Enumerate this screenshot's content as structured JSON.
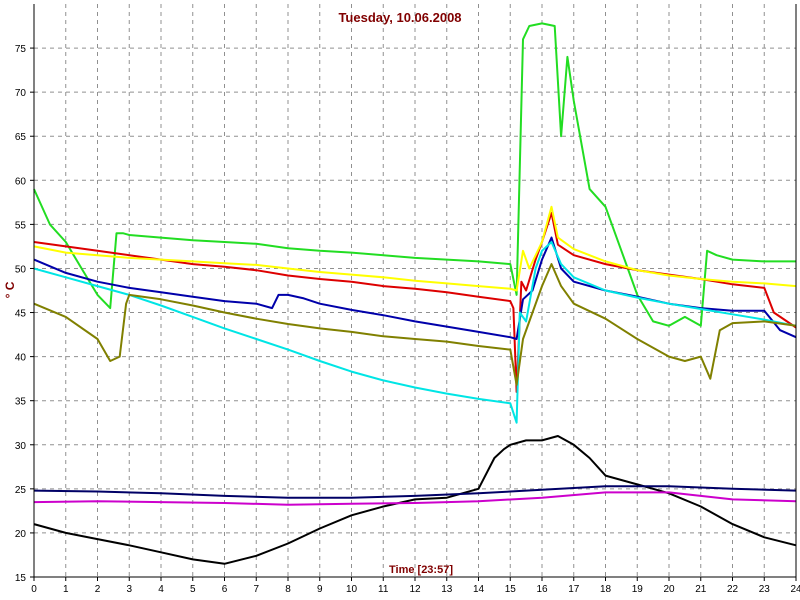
{
  "chart_data": {
    "type": "line",
    "title": "Tuesday, 10.06.2008",
    "xlabel": "Time [23:57]",
    "ylabel": "° C",
    "xlim": [
      0,
      24
    ],
    "ylim": [
      15,
      80
    ],
    "x_ticks": [
      "0",
      "1",
      "2",
      "3",
      "4",
      "5",
      "6",
      "7",
      "8",
      "9",
      "10",
      "11",
      "12",
      "13",
      "14",
      "15",
      "16",
      "17",
      "18",
      "19",
      "20",
      "21",
      "22",
      "23",
      "24"
    ],
    "y_ticks": [
      "15",
      "20",
      "25",
      "30",
      "35",
      "40",
      "45",
      "50",
      "55",
      "60",
      "65",
      "70",
      "75"
    ],
    "grid": true,
    "series": [
      {
        "color": "#22dd22",
        "x": [
          0,
          0.5,
          1,
          1.5,
          2,
          2.4,
          2.6,
          2.8,
          3,
          4,
          5,
          6,
          7,
          8,
          9,
          10,
          11,
          12,
          13,
          14,
          15,
          15.2,
          15.4,
          15.6,
          16,
          16.4,
          16.6,
          16.8,
          17,
          17.5,
          18,
          18.5,
          19,
          19.5,
          20,
          20.5,
          21,
          21.2,
          21.5,
          22,
          23,
          24
        ],
        "y": [
          59,
          55,
          53,
          50,
          47,
          45.5,
          54,
          54,
          53.8,
          53.5,
          53.2,
          53,
          52.8,
          52.3,
          52,
          51.8,
          51.5,
          51.2,
          51,
          50.8,
          50.5,
          47,
          76,
          77.5,
          77.8,
          77.5,
          65,
          74,
          69,
          59,
          57,
          52,
          47,
          44,
          43.5,
          44.5,
          43.5,
          52,
          51.5,
          51,
          50.8,
          50.8
        ]
      },
      {
        "color": "#dd0000",
        "x": [
          0,
          1,
          2,
          3,
          4,
          5,
          6,
          7,
          8,
          9,
          10,
          11,
          12,
          13,
          14,
          15,
          15.1,
          15.2,
          15.35,
          15.5,
          15.8,
          16,
          16.3,
          16.5,
          17,
          18,
          19,
          20,
          21,
          22,
          23,
          23.3,
          24
        ],
        "y": [
          53,
          52.5,
          52,
          51.5,
          51,
          50.5,
          50.2,
          49.8,
          49.2,
          48.8,
          48.5,
          48,
          47.7,
          47.3,
          46.8,
          46.3,
          45.5,
          36,
          48.5,
          47.5,
          51,
          53,
          56.3,
          52.7,
          51.5,
          50.5,
          49.8,
          49.3,
          48.8,
          48.2,
          47.8,
          45,
          43.3
        ]
      },
      {
        "color": "#ffff00",
        "x": [
          0,
          1,
          2,
          3,
          4,
          5,
          6,
          7,
          8,
          9,
          10,
          11,
          12,
          13,
          14,
          15,
          15.2,
          15.4,
          15.6,
          16,
          16.3,
          16.5,
          17,
          18,
          19,
          20,
          21,
          22,
          23,
          24
        ],
        "y": [
          52.5,
          51.8,
          51.5,
          51.2,
          51,
          50.8,
          50.6,
          50.4,
          50,
          49.6,
          49.3,
          49,
          48.6,
          48.3,
          48,
          47.7,
          47.5,
          52,
          50,
          53,
          57,
          53.5,
          52.2,
          50.8,
          49.8,
          49.2,
          48.8,
          48.5,
          48.3,
          48
        ]
      },
      {
        "color": "#0000aa",
        "x": [
          0,
          1,
          2,
          3,
          4,
          5,
          6,
          7,
          7.5,
          7.7,
          8,
          8.5,
          9,
          10,
          11,
          12,
          13,
          14,
          15,
          15.2,
          15.4,
          15.7,
          16,
          16.3,
          16.6,
          17,
          18,
          19,
          20,
          21,
          22,
          23,
          23.5,
          24
        ],
        "y": [
          51,
          49.5,
          48.5,
          47.8,
          47.3,
          46.8,
          46.3,
          46,
          45.5,
          47,
          47,
          46.6,
          46,
          45.3,
          44.7,
          44,
          43.4,
          42.8,
          42.2,
          42,
          46.5,
          47.5,
          51,
          53.5,
          50,
          48.5,
          47.5,
          46.8,
          46,
          45.5,
          45.2,
          45.2,
          43,
          42.2
        ]
      },
      {
        "color": "#00e5e5",
        "x": [
          0,
          1,
          2,
          3,
          4,
          5,
          6,
          7,
          8,
          9,
          10,
          11,
          12,
          13,
          14,
          15,
          15.2,
          15.3,
          15.5,
          15.8,
          16,
          16.3,
          16.6,
          17,
          18,
          19,
          20,
          21,
          22,
          23,
          24
        ],
        "y": [
          50,
          49,
          48,
          47,
          45.8,
          44.5,
          43.2,
          42,
          40.8,
          39.5,
          38.3,
          37.3,
          36.5,
          35.8,
          35.2,
          34.7,
          32.5,
          45,
          44,
          50,
          52,
          53,
          50.5,
          49,
          47.5,
          46.7,
          46,
          45.4,
          44.8,
          44.2,
          43.5
        ]
      },
      {
        "color": "#808000",
        "x": [
          0,
          1,
          2,
          2.4,
          2.7,
          2.9,
          3,
          4,
          5,
          6,
          7,
          8,
          9,
          10,
          11,
          12,
          13,
          14,
          15,
          15.2,
          15.4,
          16,
          16.3,
          16.6,
          17,
          18,
          19,
          20,
          20.5,
          21,
          21.3,
          21.6,
          22,
          23,
          24
        ],
        "y": [
          46,
          44.5,
          42,
          39.5,
          40,
          46,
          47,
          46.5,
          45.8,
          45,
          44.3,
          43.7,
          43.2,
          42.8,
          42.3,
          42,
          41.7,
          41.2,
          40.8,
          36.8,
          42,
          48,
          50.5,
          48,
          46,
          44.3,
          42,
          40,
          39.5,
          40,
          37.5,
          43,
          43.8,
          44,
          43.5
        ]
      },
      {
        "color": "#000000",
        "x": [
          0,
          1,
          2,
          3,
          4,
          5,
          6,
          7,
          8,
          9,
          10,
          11,
          12,
          13,
          14,
          14.5,
          14.8,
          15,
          15.5,
          16,
          16.5,
          17,
          17.5,
          18,
          19,
          20,
          21,
          22,
          23,
          24
        ],
        "y": [
          21,
          20,
          19.3,
          18.6,
          17.8,
          17,
          16.5,
          17.4,
          18.8,
          20.5,
          22,
          23,
          23.8,
          24,
          25,
          28.5,
          29.5,
          30,
          30.5,
          30.5,
          31,
          30,
          28.5,
          26.5,
          25.5,
          24.5,
          23,
          21,
          19.5,
          18.6
        ]
      },
      {
        "color": "#000066",
        "x": [
          0,
          2,
          4,
          6,
          8,
          10,
          12,
          14,
          16,
          18,
          20,
          22,
          24
        ],
        "y": [
          24.8,
          24.7,
          24.5,
          24.2,
          24,
          24,
          24.2,
          24.5,
          24.9,
          25.3,
          25.3,
          25,
          24.8
        ]
      },
      {
        "color": "#cc00cc",
        "x": [
          0,
          2,
          4,
          6,
          8,
          10,
          12,
          14,
          16,
          18,
          20,
          22,
          24
        ],
        "y": [
          23.5,
          23.6,
          23.5,
          23.4,
          23.2,
          23.3,
          23.4,
          23.6,
          24,
          24.6,
          24.6,
          23.8,
          23.6
        ]
      }
    ]
  }
}
